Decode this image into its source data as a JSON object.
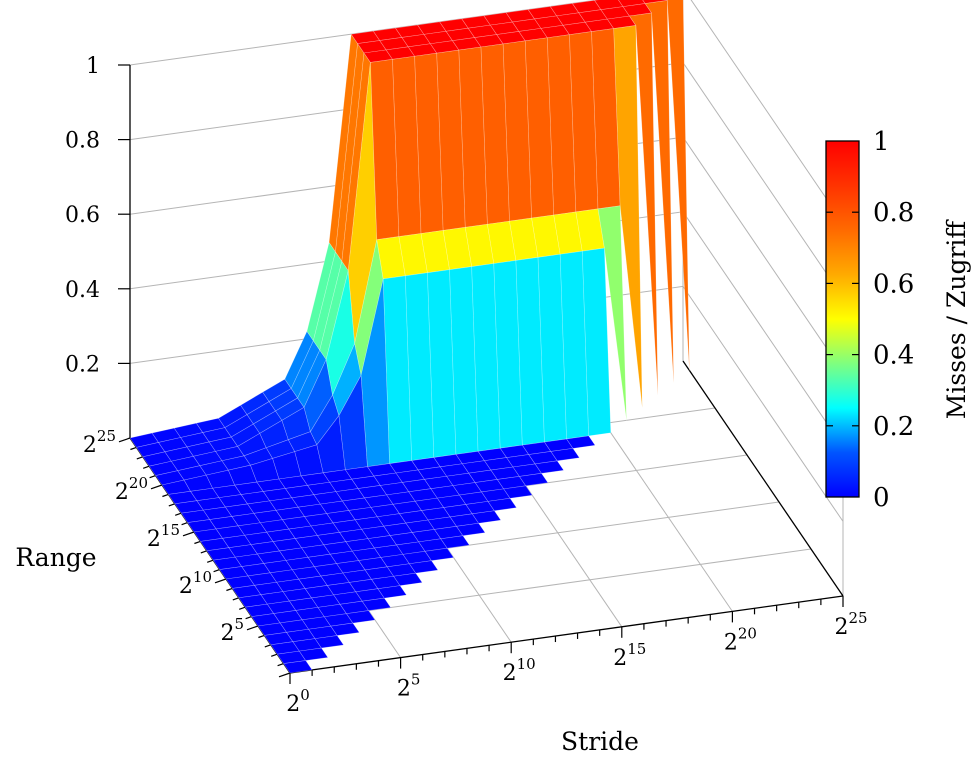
{
  "chart_data": {
    "type": "surface3d",
    "x_axis": {
      "title": "Stride",
      "tick_bases": [
        "2",
        "2",
        "2",
        "2",
        "2",
        "2"
      ],
      "tick_exponents": [
        "0",
        "5",
        "10",
        "15",
        "20",
        "25"
      ],
      "range_log2": [
        0,
        25
      ]
    },
    "y_axis": {
      "title": "Range",
      "tick_bases": [
        "2",
        "2",
        "2",
        "2",
        "2",
        "2"
      ],
      "tick_exponents": [
        "0",
        "5",
        "10",
        "15",
        "20",
        "25"
      ],
      "range_log2": [
        0,
        25
      ]
    },
    "z_axis": {
      "ticks": [
        "0.2",
        "0.4",
        "0.6",
        "0.8",
        "1"
      ],
      "range": [
        0,
        1
      ]
    },
    "colorbar": {
      "label": "Misses / Zugriff",
      "ticks": [
        "0",
        "0.2",
        "0.4",
        "0.6",
        "0.8",
        "1"
      ],
      "range": [
        0,
        1
      ],
      "colormap": "jet"
    },
    "surface_rows": [
      {
        "range_log2": 25,
        "misses_by_stride_log2": {
          "0": 0.0,
          "4": 0.02,
          "7": 0.1,
          "8": 0.22,
          "9": 0.45,
          "10": 1.0,
          "25": 1.0
        }
      },
      {
        "range_log2": 24,
        "misses_by_stride_log2": {
          "0": 0.0,
          "4": 0.02,
          "7": 0.1,
          "8": 0.22,
          "9": 0.45,
          "10": 1.0,
          "24": 1.0
        }
      },
      {
        "range_log2": 23,
        "misses_by_stride_log2": {
          "0": 0.0,
          "4": 0.02,
          "7": 0.1,
          "8": 0.22,
          "9": 0.45,
          "10": 1.0,
          "23": 1.0
        }
      },
      {
        "range_log2": 22,
        "misses_by_stride_log2": {
          "0": 0.0,
          "4": 0.02,
          "7": 0.1,
          "8": 0.22,
          "9": 0.45,
          "10": 1.0,
          "22": 1.0
        }
      },
      {
        "range_log2": 21,
        "misses_by_stride_log2": {
          "0": 0.0,
          "4": 0.02,
          "7": 0.06,
          "8": 0.15,
          "9": 0.28,
          "10": 0.55,
          "21": 0.55
        }
      },
      {
        "range_log2": 20,
        "misses_by_stride_log2": {
          "0": 0.0,
          "4": 0.02,
          "7": 0.05,
          "8": 0.12,
          "9": 0.22,
          "10": 0.47,
          "20": 0.47
        }
      },
      {
        "range_log2": 19,
        "misses_by_stride_log2": {
          "0": 0.0,
          "19": 0.0
        }
      },
      {
        "range_log2": 0,
        "misses_by_stride_log2": {
          "0": 0.0
        }
      }
    ]
  }
}
